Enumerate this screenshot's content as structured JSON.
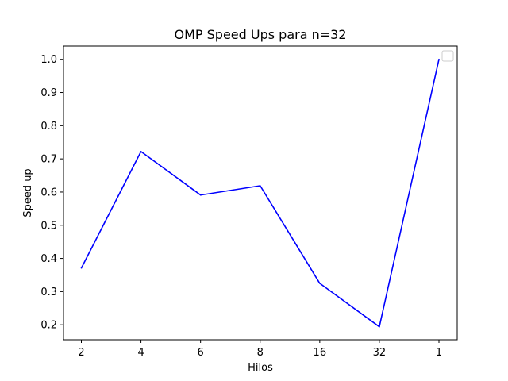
{
  "chart_data": {
    "type": "line",
    "title": "OMP Speed Ups para n=32",
    "xlabel": "Hilos",
    "ylabel": "Speed up",
    "categories": [
      "2",
      "4",
      "6",
      "8",
      "16",
      "32",
      "1"
    ],
    "series": [
      {
        "values": [
          0.371,
          0.722,
          0.591,
          0.619,
          0.325,
          0.194,
          1.0
        ],
        "color": "#0000ff"
      }
    ],
    "ylim": [
      0.155,
      1.04
    ],
    "yticks": [
      0.2,
      0.3,
      0.4,
      0.5,
      0.6,
      0.7,
      0.8,
      0.9,
      1.0
    ],
    "ytick_labels": [
      "0.2",
      "0.3",
      "0.4",
      "0.5",
      "0.6",
      "0.7",
      "0.8",
      "0.9",
      "1.0"
    ],
    "grid": false,
    "legend": {
      "placement": "top-right",
      "entries": []
    }
  }
}
